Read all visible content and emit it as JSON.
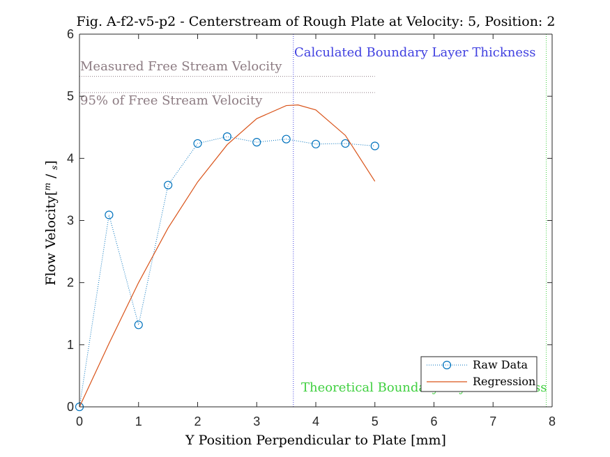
{
  "chart_data": {
    "type": "line",
    "title": "Fig. A-f2-v5-p2 - Centerstream of Rough Plate at Velocity: 5, Position: 2",
    "xlabel": "Y Position Perpendicular to Plate [mm]",
    "ylabel_main": "Flow Velocity",
    "ylabel_unit_num": "m",
    "ylabel_unit_den": "s",
    "xlim": [
      0,
      8
    ],
    "ylim": [
      0,
      6
    ],
    "xticks": [
      0,
      1,
      2,
      3,
      4,
      5,
      6,
      7,
      8
    ],
    "yticks": [
      0,
      1,
      2,
      3,
      4,
      5,
      6
    ],
    "grid": false,
    "legend_position": "bottom-right",
    "series": [
      {
        "name": "Raw Data",
        "style": "dotted-circle-markers",
        "color": "#0072BD",
        "x": [
          0,
          0.5,
          1,
          1.5,
          2,
          2.5,
          3,
          3.5,
          4,
          4.5,
          5
        ],
        "y": [
          0,
          3.09,
          1.32,
          3.57,
          4.24,
          4.35,
          4.26,
          4.31,
          4.23,
          4.24,
          4.2
        ]
      },
      {
        "name": "Regression",
        "style": "solid",
        "color": "#D95319",
        "x": [
          0,
          0.5,
          1,
          1.5,
          2,
          2.5,
          3,
          3.5,
          3.7,
          4,
          4.5,
          5
        ],
        "y": [
          0,
          1.02,
          2.0,
          2.88,
          3.62,
          4.22,
          4.64,
          4.85,
          4.86,
          4.78,
          4.37,
          3.63
        ]
      }
    ],
    "reference_lines": [
      {
        "orientation": "horizontal",
        "y": 5.32,
        "x_range": [
          0,
          5
        ],
        "color": "#8c7b82",
        "style": "dotted",
        "label": "Measured Free Stream Velocity"
      },
      {
        "orientation": "horizontal",
        "y": 5.06,
        "x_range": [
          0,
          5
        ],
        "color": "#8c7b82",
        "style": "dotted",
        "label": "95% of Free Stream Velocity"
      },
      {
        "orientation": "vertical",
        "x": 3.62,
        "color": "#4040e0",
        "style": "dotted",
        "label": "Calculated Boundary Layer Thickness"
      },
      {
        "orientation": "vertical",
        "x": 7.9,
        "color": "#40d040",
        "style": "dotted",
        "label": "Theoretical Boundary Layer Thickness"
      }
    ]
  }
}
